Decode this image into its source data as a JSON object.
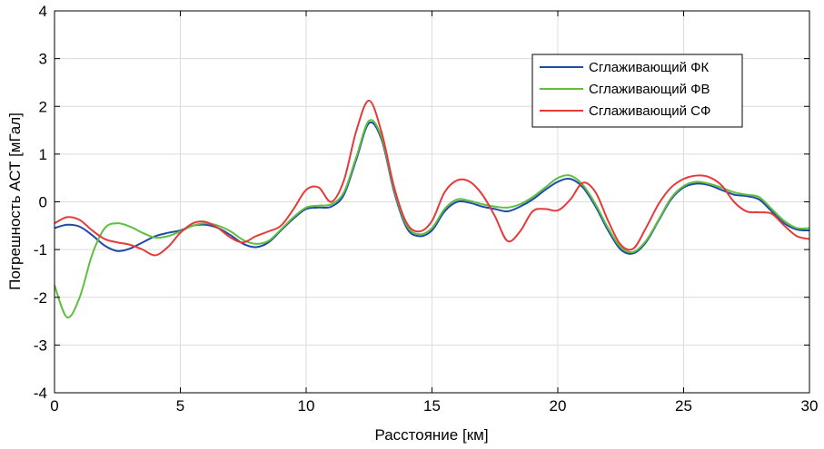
{
  "chart_data": {
    "type": "line",
    "xlabel": "Расстояние [км]",
    "ylabel": "Погрешность АСТ  [мГал]",
    "xlim": [
      0,
      30
    ],
    "ylim": [
      -4,
      4
    ],
    "xticks": [
      0,
      5,
      10,
      15,
      20,
      25,
      30
    ],
    "yticks": [
      -4,
      -3,
      -2,
      -1,
      0,
      1,
      2,
      3,
      4
    ],
    "grid": true,
    "legend_position": "top-right",
    "series": [
      {
        "name": "Сглаживающий ФК",
        "color": "#1f4aa8",
        "x": [
          0,
          0.5,
          1,
          1.5,
          2,
          2.5,
          3,
          3.5,
          4,
          4.5,
          5,
          5.5,
          6,
          6.5,
          7,
          7.5,
          8,
          8.5,
          9,
          9.5,
          10,
          10.5,
          11,
          11.5,
          12,
          12.5,
          13,
          13.5,
          14,
          14.5,
          15,
          15.5,
          16,
          16.5,
          17,
          17.5,
          18,
          18.5,
          19,
          19.5,
          20,
          20.5,
          21,
          21.5,
          22,
          22.5,
          23,
          23.5,
          24,
          24.5,
          25,
          25.5,
          26,
          26.5,
          27,
          27.5,
          28,
          28.5,
          29,
          29.5,
          30
        ],
        "y": [
          -0.55,
          -0.48,
          -0.52,
          -0.7,
          -0.92,
          -1.03,
          -0.98,
          -0.85,
          -0.72,
          -0.65,
          -0.6,
          -0.5,
          -0.48,
          -0.55,
          -0.7,
          -0.88,
          -0.95,
          -0.85,
          -0.6,
          -0.35,
          -0.15,
          -0.12,
          -0.1,
          0.15,
          0.9,
          1.65,
          1.3,
          0.2,
          -0.55,
          -0.72,
          -0.6,
          -0.2,
          0.0,
          -0.02,
          -0.1,
          -0.15,
          -0.2,
          -0.1,
          0.05,
          0.25,
          0.42,
          0.48,
          0.3,
          -0.1,
          -0.6,
          -1.0,
          -1.08,
          -0.85,
          -0.4,
          0.05,
          0.3,
          0.38,
          0.35,
          0.25,
          0.15,
          0.12,
          0.05,
          -0.2,
          -0.45,
          -0.58,
          -0.6
        ]
      },
      {
        "name": "Сглаживающий ФВ",
        "color": "#5fbf3f",
        "x": [
          0,
          0.5,
          1,
          1.5,
          2,
          2.5,
          3,
          3.5,
          4,
          4.5,
          5,
          5.5,
          6,
          6.5,
          7,
          7.5,
          8,
          8.5,
          9,
          9.5,
          10,
          10.5,
          11,
          11.5,
          12,
          12.5,
          13,
          13.5,
          14,
          14.5,
          15,
          15.5,
          16,
          16.5,
          17,
          17.5,
          18,
          18.5,
          19,
          19.5,
          20,
          20.5,
          21,
          21.5,
          22,
          22.5,
          23,
          23.5,
          24,
          24.5,
          25,
          25.5,
          26,
          26.5,
          27,
          27.5,
          28,
          28.5,
          29,
          29.5,
          30
        ],
        "y": [
          -1.75,
          -2.42,
          -2.0,
          -1.1,
          -0.55,
          -0.45,
          -0.52,
          -0.65,
          -0.75,
          -0.72,
          -0.62,
          -0.5,
          -0.45,
          -0.5,
          -0.62,
          -0.8,
          -0.88,
          -0.82,
          -0.58,
          -0.32,
          -0.12,
          -0.08,
          -0.05,
          0.2,
          0.95,
          1.7,
          1.35,
          0.25,
          -0.5,
          -0.68,
          -0.55,
          -0.15,
          0.05,
          0.02,
          -0.05,
          -0.1,
          -0.12,
          -0.05,
          0.1,
          0.3,
          0.5,
          0.55,
          0.35,
          -0.05,
          -0.55,
          -0.95,
          -1.05,
          -0.82,
          -0.38,
          0.08,
          0.33,
          0.42,
          0.38,
          0.3,
          0.2,
          0.15,
          0.1,
          -0.15,
          -0.4,
          -0.55,
          -0.55
        ]
      },
      {
        "name": "Сглаживающий СФ",
        "color": "#e53a3a",
        "x": [
          0,
          0.5,
          1,
          1.5,
          2,
          2.5,
          3,
          3.5,
          4,
          4.5,
          5,
          5.5,
          6,
          6.5,
          7,
          7.5,
          8,
          8.5,
          9,
          9.5,
          10,
          10.5,
          11,
          11.5,
          12,
          12.5,
          13,
          13.5,
          14,
          14.5,
          15,
          15.5,
          16,
          16.5,
          17,
          17.5,
          18,
          18.5,
          19,
          19.5,
          20,
          20.5,
          21,
          21.5,
          22,
          22.5,
          23,
          23.5,
          24,
          24.5,
          25,
          25.5,
          26,
          26.5,
          27,
          27.5,
          28,
          28.5,
          29,
          29.5,
          30
        ],
        "y": [
          -0.45,
          -0.32,
          -0.38,
          -0.6,
          -0.78,
          -0.85,
          -0.9,
          -1.0,
          -1.12,
          -0.95,
          -0.65,
          -0.45,
          -0.42,
          -0.55,
          -0.75,
          -0.85,
          -0.72,
          -0.62,
          -0.5,
          -0.15,
          0.25,
          0.3,
          0.0,
          0.45,
          1.5,
          2.12,
          1.45,
          0.3,
          -0.45,
          -0.62,
          -0.4,
          0.2,
          0.45,
          0.42,
          0.15,
          -0.3,
          -0.82,
          -0.62,
          -0.2,
          -0.15,
          -0.18,
          0.05,
          0.4,
          0.2,
          -0.4,
          -0.9,
          -0.98,
          -0.55,
          -0.05,
          0.3,
          0.48,
          0.55,
          0.52,
          0.35,
          0.0,
          -0.2,
          -0.22,
          -0.25,
          -0.5,
          -0.72,
          -0.78
        ]
      }
    ]
  }
}
